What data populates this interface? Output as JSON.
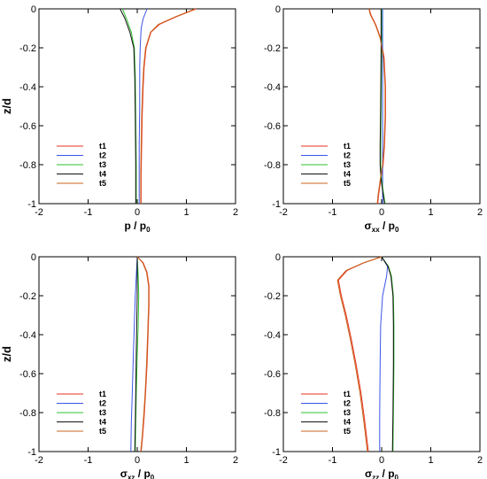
{
  "colors": [
    "#e8321e",
    "#3a55e8",
    "#2ec02e",
    "#111111",
    "#c8641e"
  ],
  "chart_data": [
    {
      "type": "line",
      "xlabel": "p / p",
      "xlabel_sub": "0",
      "ylabel": "z/d",
      "xlim": [
        -2,
        2
      ],
      "ylim": [
        -1,
        0
      ],
      "xticks": [
        "-2",
        "-1",
        "0",
        "1",
        "2"
      ],
      "yticks": [
        "0",
        "-0.2",
        "-0.4",
        "-0.6",
        "-0.8",
        "-1"
      ],
      "grid": false,
      "legend_position": "lower-left",
      "series": [
        {
          "name": "t1",
          "x": [
            1.2,
            0.8,
            0.45,
            0.28,
            0.18,
            0.14,
            0.12,
            0.1,
            0.09,
            0.08,
            0.08
          ],
          "y": [
            0,
            -0.04,
            -0.08,
            -0.12,
            -0.2,
            -0.3,
            -0.4,
            -0.55,
            -0.7,
            -0.85,
            -1
          ]
        },
        {
          "name": "t2",
          "x": [
            0.2,
            0.12,
            0.08,
            0.06,
            0.05,
            0.05,
            0.04,
            0.04,
            0.04
          ],
          "y": [
            0,
            -0.05,
            -0.1,
            -0.2,
            -0.3,
            -0.5,
            -0.7,
            -0.85,
            -1
          ]
        },
        {
          "name": "t3",
          "x": [
            -0.3,
            -0.22,
            -0.12,
            -0.06,
            -0.04,
            -0.03,
            -0.02,
            -0.02
          ],
          "y": [
            0,
            -0.05,
            -0.12,
            -0.2,
            -0.35,
            -0.55,
            -0.8,
            -1
          ]
        },
        {
          "name": "t4",
          "x": [
            -0.35,
            -0.25,
            -0.15,
            -0.07,
            -0.05,
            -0.04,
            -0.03,
            -0.03
          ],
          "y": [
            0,
            -0.05,
            -0.12,
            -0.2,
            -0.35,
            -0.55,
            -0.8,
            -1
          ]
        },
        {
          "name": "t5",
          "x": [
            1.18,
            0.78,
            0.43,
            0.27,
            0.17,
            0.13,
            0.11,
            0.09,
            0.08,
            0.07,
            0.07
          ],
          "y": [
            0,
            -0.04,
            -0.08,
            -0.12,
            -0.2,
            -0.3,
            -0.4,
            -0.55,
            -0.7,
            -0.85,
            -1
          ]
        }
      ]
    },
    {
      "type": "line",
      "xlabel": "σ",
      "xlabel_sub": "xx",
      "xlabel_rest": " / p",
      "xlabel_sub2": "0",
      "ylabel": "",
      "xlim": [
        -2,
        2
      ],
      "ylim": [
        -1,
        0
      ],
      "xticks": [
        "-2",
        "-1",
        "0",
        "1",
        "2"
      ],
      "yticks": [
        "0",
        "-0.2",
        "-0.4",
        "-0.6",
        "-0.8",
        "-1"
      ],
      "grid": false,
      "legend_position": "lower-left",
      "series": [
        {
          "name": "t1",
          "x": [
            -0.25,
            -0.22,
            -0.12,
            -0.02,
            0.05,
            0.08,
            0.08,
            0.06,
            0.03,
            -0.02,
            -0.06,
            -0.08
          ],
          "y": [
            0,
            -0.03,
            -0.08,
            -0.15,
            -0.25,
            -0.4,
            -0.55,
            -0.7,
            -0.8,
            -0.88,
            -0.95,
            -1
          ]
        },
        {
          "name": "t2",
          "x": [
            0.02,
            0.02,
            0.02,
            0.02,
            0.02,
            0.02
          ],
          "y": [
            0,
            -0.2,
            -0.4,
            -0.6,
            -0.8,
            -1
          ]
        },
        {
          "name": "t3",
          "x": [
            0.0,
            0.0,
            -0.01,
            -0.02,
            -0.02,
            0.0,
            0.04,
            0.07
          ],
          "y": [
            0,
            -0.2,
            -0.5,
            -0.7,
            -0.8,
            -0.88,
            -0.95,
            -1
          ]
        },
        {
          "name": "t4",
          "x": [
            -0.01,
            -0.01,
            -0.02,
            -0.03,
            -0.03,
            -0.01,
            0.03,
            0.06
          ],
          "y": [
            0,
            -0.2,
            -0.5,
            -0.7,
            -0.8,
            -0.88,
            -0.95,
            -1
          ]
        },
        {
          "name": "t5",
          "x": [
            -0.26,
            -0.23,
            -0.13,
            -0.03,
            0.04,
            0.07,
            0.07,
            0.05,
            0.02,
            -0.03,
            -0.07,
            -0.09
          ],
          "y": [
            0,
            -0.03,
            -0.08,
            -0.15,
            -0.25,
            -0.4,
            -0.55,
            -0.7,
            -0.8,
            -0.88,
            -0.95,
            -1
          ]
        }
      ]
    },
    {
      "type": "line",
      "xlabel": "σ",
      "xlabel_sub": "xz",
      "xlabel_rest": " / p",
      "xlabel_sub2": "0",
      "ylabel": "z/d",
      "xlim": [
        -2,
        2
      ],
      "ylim": [
        -1,
        0
      ],
      "xticks": [
        "-2",
        "-1",
        "0",
        "1",
        "2"
      ],
      "yticks": [
        "0",
        "-0.2",
        "-0.4",
        "-0.6",
        "-0.8",
        "-1"
      ],
      "grid": false,
      "legend_position": "lower-left",
      "series": [
        {
          "name": "t1",
          "x": [
            0.0,
            0.12,
            0.2,
            0.24,
            0.24,
            0.22,
            0.2,
            0.17,
            0.14,
            0.11,
            0.08
          ],
          "y": [
            0,
            -0.03,
            -0.08,
            -0.15,
            -0.25,
            -0.4,
            -0.55,
            -0.7,
            -0.82,
            -0.92,
            -1
          ]
        },
        {
          "name": "t2",
          "x": [
            0.0,
            -0.02,
            -0.04,
            -0.06,
            -0.08,
            -0.1,
            -0.12,
            -0.13
          ],
          "y": [
            0,
            -0.1,
            -0.2,
            -0.35,
            -0.5,
            -0.7,
            -0.85,
            -1
          ]
        },
        {
          "name": "t3",
          "x": [
            0.0,
            0.02,
            0.03,
            0.02,
            0.0,
            -0.02,
            -0.03,
            -0.04
          ],
          "y": [
            0,
            -0.1,
            -0.2,
            -0.35,
            -0.5,
            -0.7,
            -0.85,
            -1
          ]
        },
        {
          "name": "t4",
          "x": [
            0.0,
            0.0,
            0.0,
            -0.01,
            -0.02,
            -0.03,
            -0.04,
            -0.05
          ],
          "y": [
            0,
            -0.1,
            -0.2,
            -0.35,
            -0.5,
            -0.7,
            -0.85,
            -1
          ]
        },
        {
          "name": "t5",
          "x": [
            0.0,
            0.11,
            0.19,
            0.23,
            0.23,
            0.21,
            0.19,
            0.16,
            0.13,
            0.1,
            0.07
          ],
          "y": [
            0,
            -0.03,
            -0.08,
            -0.15,
            -0.25,
            -0.4,
            -0.55,
            -0.7,
            -0.82,
            -0.92,
            -1
          ]
        }
      ]
    },
    {
      "type": "line",
      "xlabel": "σ",
      "xlabel_sub": "zz",
      "xlabel_rest": " / p",
      "xlabel_sub2": "0",
      "ylabel": "",
      "xlim": [
        -2,
        2
      ],
      "ylim": [
        -1,
        0
      ],
      "xticks": [
        "-2",
        "-1",
        "0",
        "1",
        "2"
      ],
      "yticks": [
        "0",
        "-0.2",
        "-0.4",
        "-0.6",
        "-0.8",
        "-1"
      ],
      "grid": false,
      "legend_position": "lower-left",
      "series": [
        {
          "name": "t1",
          "x": [
            0.0,
            -0.35,
            -0.7,
            -0.88,
            -0.82,
            -0.72,
            -0.62,
            -0.52,
            -0.42,
            -0.34,
            -0.27
          ],
          "y": [
            0,
            -0.03,
            -0.07,
            -0.12,
            -0.2,
            -0.3,
            -0.42,
            -0.55,
            -0.7,
            -0.85,
            -1
          ]
        },
        {
          "name": "t2",
          "x": [
            0.0,
            0.12,
            0.1,
            0.02,
            -0.02,
            -0.03,
            -0.04,
            -0.04
          ],
          "y": [
            0,
            -0.05,
            -0.1,
            -0.2,
            -0.35,
            -0.55,
            -0.8,
            -1
          ]
        },
        {
          "name": "t3",
          "x": [
            0.0,
            0.14,
            0.2,
            0.24,
            0.25,
            0.25,
            0.24,
            0.23
          ],
          "y": [
            0,
            -0.05,
            -0.1,
            -0.2,
            -0.35,
            -0.55,
            -0.8,
            -1
          ]
        },
        {
          "name": "t4",
          "x": [
            0.0,
            0.13,
            0.19,
            0.23,
            0.24,
            0.24,
            0.23,
            0.22
          ],
          "y": [
            0,
            -0.05,
            -0.1,
            -0.2,
            -0.35,
            -0.55,
            -0.8,
            -1
          ]
        },
        {
          "name": "t5",
          "x": [
            0.0,
            -0.36,
            -0.72,
            -0.9,
            -0.84,
            -0.74,
            -0.64,
            -0.54,
            -0.44,
            -0.36,
            -0.29
          ],
          "y": [
            0,
            -0.03,
            -0.07,
            -0.12,
            -0.2,
            -0.3,
            -0.42,
            -0.55,
            -0.7,
            -0.85,
            -1
          ]
        }
      ]
    }
  ]
}
